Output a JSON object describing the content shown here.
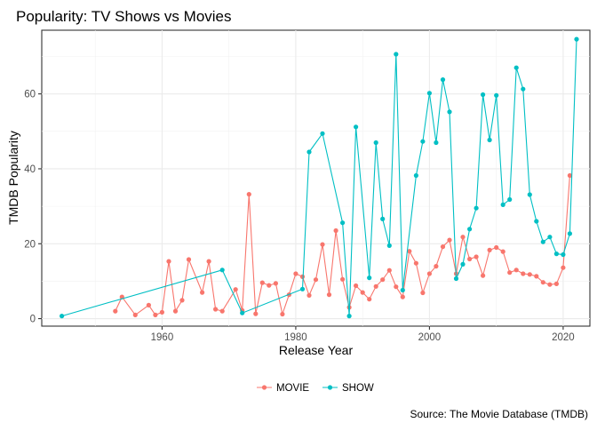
{
  "chart_data": {
    "type": "line",
    "title": "Popularity: TV Shows vs Movies",
    "xlabel": "Release Year",
    "ylabel": "TMDB Popularity",
    "caption": "Source: The Movie Database (TMDB)",
    "xlim": [
      1942,
      2024
    ],
    "ylim": [
      -2,
      77
    ],
    "x_ticks": [
      1960,
      1980,
      2000,
      2020
    ],
    "y_ticks": [
      0,
      20,
      40,
      60
    ],
    "grid": true,
    "legend_position": "bottom",
    "series": [
      {
        "name": "MOVIE",
        "color": "#F8766D",
        "points": [
          [
            1953,
            2.0
          ],
          [
            1954,
            5.8
          ],
          [
            1956,
            1.0
          ],
          [
            1958,
            3.6
          ],
          [
            1959,
            1.0
          ],
          [
            1960,
            1.7
          ],
          [
            1961,
            15.3
          ],
          [
            1962,
            2.0
          ],
          [
            1963,
            4.9
          ],
          [
            1964,
            15.8
          ],
          [
            1966,
            7.0
          ],
          [
            1967,
            15.3
          ],
          [
            1968,
            2.5
          ],
          [
            1969,
            2.0
          ],
          [
            1971,
            7.8
          ],
          [
            1972,
            2.2
          ],
          [
            1973,
            33.2
          ],
          [
            1974,
            1.3
          ],
          [
            1975,
            9.6
          ],
          [
            1976,
            8.9
          ],
          [
            1977,
            9.4
          ],
          [
            1978,
            1.2
          ],
          [
            1979,
            6.4
          ],
          [
            1980,
            12.0
          ],
          [
            1981,
            11.2
          ],
          [
            1982,
            6.2
          ],
          [
            1983,
            10.4
          ],
          [
            1984,
            19.8
          ],
          [
            1985,
            6.4
          ],
          [
            1986,
            23.5
          ],
          [
            1987,
            10.5
          ],
          [
            1988,
            3.0
          ],
          [
            1989,
            8.8
          ],
          [
            1990,
            7.0
          ],
          [
            1991,
            5.2
          ],
          [
            1992,
            8.6
          ],
          [
            1993,
            10.4
          ],
          [
            1994,
            12.9
          ],
          [
            1995,
            8.5
          ],
          [
            1996,
            5.8
          ],
          [
            1997,
            18.0
          ],
          [
            1998,
            14.8
          ],
          [
            1999,
            6.9
          ],
          [
            2000,
            12.0
          ],
          [
            2001,
            14.0
          ],
          [
            2002,
            19.2
          ],
          [
            2003,
            21.0
          ],
          [
            2004,
            12.0
          ],
          [
            2005,
            21.8
          ],
          [
            2006,
            15.9
          ],
          [
            2007,
            16.5
          ],
          [
            2008,
            11.5
          ],
          [
            2009,
            18.3
          ],
          [
            2010,
            19.0
          ],
          [
            2011,
            17.9
          ],
          [
            2012,
            12.3
          ],
          [
            2013,
            13.0
          ],
          [
            2014,
            12.0
          ],
          [
            2015,
            11.8
          ],
          [
            2016,
            11.3
          ],
          [
            2017,
            9.7
          ],
          [
            2018,
            9.1
          ],
          [
            2019,
            9.3
          ],
          [
            2020,
            13.6
          ],
          [
            2021,
            38.2
          ]
        ]
      },
      {
        "name": "SHOW",
        "color": "#00BFC4",
        "points": [
          [
            1945,
            0.7
          ],
          [
            1969,
            13.0
          ],
          [
            1972,
            1.5
          ],
          [
            1981,
            7.9
          ],
          [
            1982,
            44.5
          ],
          [
            1984,
            49.4
          ],
          [
            1987,
            25.6
          ],
          [
            1988,
            0.7
          ],
          [
            1989,
            51.2
          ],
          [
            1991,
            10.9
          ],
          [
            1992,
            47.0
          ],
          [
            1993,
            26.6
          ],
          [
            1994,
            19.5
          ],
          [
            1995,
            70.6
          ],
          [
            1996,
            7.6
          ],
          [
            1998,
            38.2
          ],
          [
            1999,
            47.3
          ],
          [
            2000,
            60.2
          ],
          [
            2001,
            47.0
          ],
          [
            2002,
            63.8
          ],
          [
            2003,
            55.2
          ],
          [
            2004,
            10.7
          ],
          [
            2005,
            14.5
          ],
          [
            2006,
            23.9
          ],
          [
            2007,
            29.5
          ],
          [
            2008,
            59.8
          ],
          [
            2009,
            47.7
          ],
          [
            2010,
            59.6
          ],
          [
            2011,
            30.4
          ],
          [
            2012,
            31.8
          ],
          [
            2013,
            67.0
          ],
          [
            2014,
            61.3
          ],
          [
            2015,
            33.1
          ],
          [
            2016,
            26.0
          ],
          [
            2017,
            20.5
          ],
          [
            2018,
            21.8
          ],
          [
            2019,
            17.3
          ],
          [
            2020,
            17.1
          ],
          [
            2021,
            22.7
          ],
          [
            2022,
            74.6
          ]
        ]
      }
    ]
  }
}
